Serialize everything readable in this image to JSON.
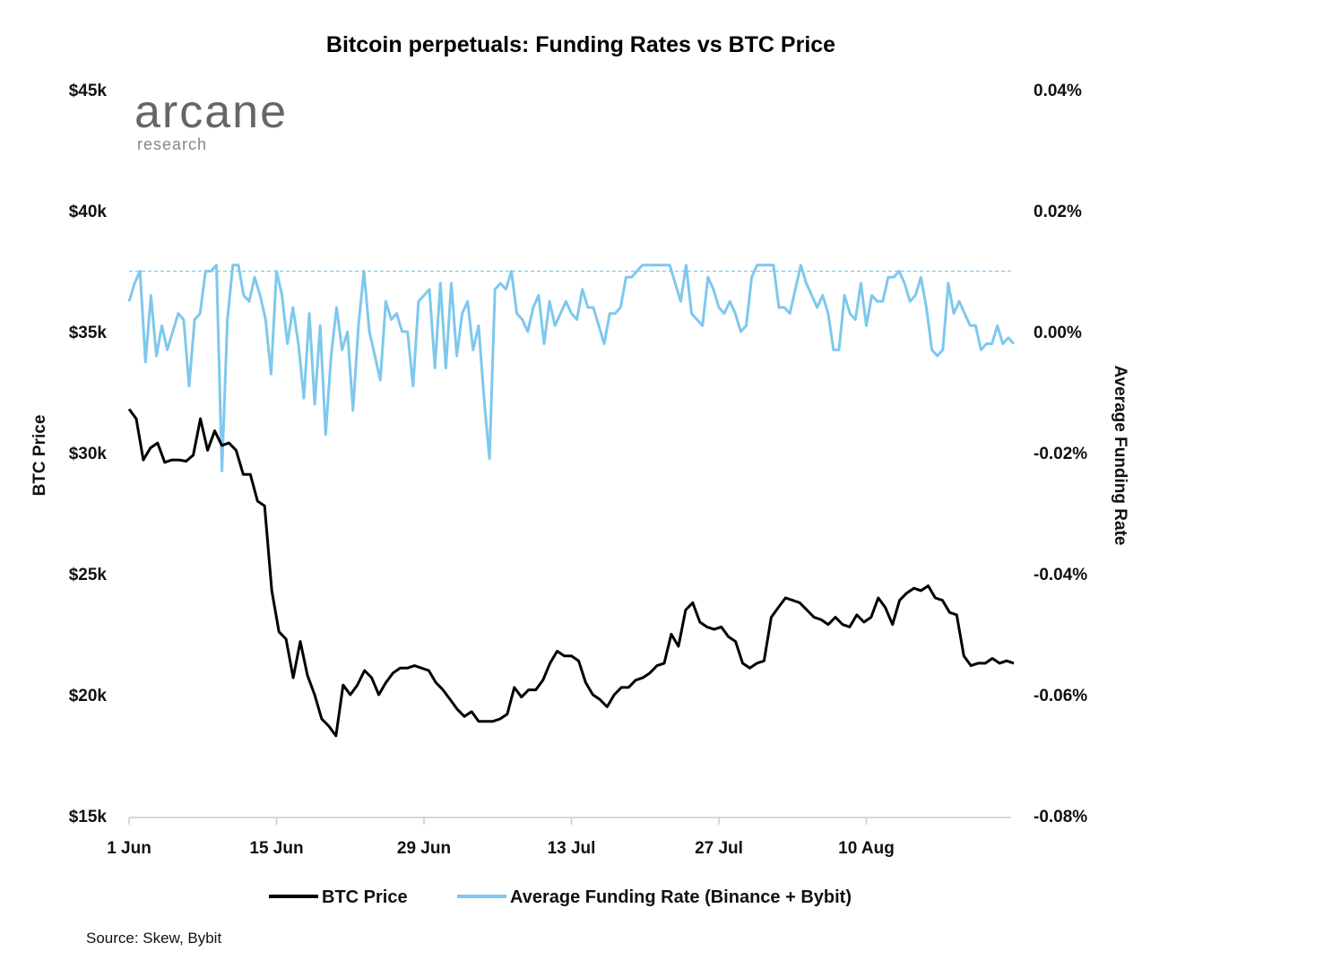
{
  "chart_data": {
    "type": "line",
    "title": "Bitcoin perpetuals: Funding Rates vs BTC Price",
    "logo": {
      "main": "arcane",
      "sub": "research"
    },
    "source": "Source: Skew, Bybit",
    "x_labels": [
      "1 Jun",
      "15 Jun",
      "29 Jun",
      "13 Jul",
      "27 Jul",
      "10 Aug"
    ],
    "x_label_day_index": [
      0,
      14,
      28,
      42,
      56,
      70
    ],
    "x_range_days": [
      0,
      84
    ],
    "y_left": {
      "label": "BTC Price",
      "range": [
        15000,
        45000
      ],
      "ticks": [
        15000,
        20000,
        25000,
        30000,
        35000,
        40000,
        45000
      ],
      "tick_labels": [
        "$15k",
        "$20k",
        "$25k",
        "$30k",
        "$35k",
        "$40k",
        "$45k"
      ]
    },
    "y_right": {
      "label": "Average Funding Rate",
      "range": [
        -0.08,
        0.04
      ],
      "ticks": [
        -0.08,
        -0.06,
        -0.04,
        -0.02,
        0.0,
        0.02,
        0.04
      ],
      "tick_labels": [
        "-0.08%",
        "-0.06%",
        "-0.04%",
        "-0.02%",
        "0.00%",
        "0.02%",
        "0.04%"
      ],
      "reference_line": 0.01
    },
    "grid": false,
    "legend_position": "bottom",
    "series": [
      {
        "name": "BTC Price",
        "axis": "left",
        "color": "#000000",
        "values": [
          31800,
          31400,
          29700,
          30200,
          30400,
          29600,
          29700,
          29700,
          29650,
          29900,
          31400,
          30100,
          30900,
          30300,
          30400,
          30100,
          29100,
          29100,
          28000,
          27800,
          24300,
          22600,
          22300,
          20700,
          22200,
          20800,
          20000,
          19000,
          18700,
          18300,
          20400,
          20000,
          20400,
          21000,
          20700,
          20000,
          20500,
          20900,
          21100,
          21100,
          21200,
          21100,
          21000,
          20500,
          20200,
          19800,
          19400,
          19100,
          19300,
          18900,
          18900,
          18900,
          19000,
          19200,
          20300,
          19900,
          20200,
          20200,
          20600,
          21300,
          21800,
          21600,
          21600,
          21400,
          20500,
          20000,
          19800,
          19500,
          20000,
          20300,
          20300,
          20600,
          20700,
          20900,
          21200,
          21300,
          22500,
          22000,
          23500,
          23800,
          23000,
          22800,
          22700,
          22800,
          22400,
          22200,
          21300,
          21100,
          21300,
          21400,
          23200,
          23600,
          24000,
          23900,
          23800,
          23500,
          23200,
          23100,
          22900,
          23200,
          22900,
          22800,
          23300,
          23000,
          23200,
          24000,
          23600,
          22900,
          23900,
          24200,
          24400,
          24300,
          24500,
          24000,
          23900,
          23400,
          23300,
          21600,
          21200,
          21300,
          21300,
          21500,
          21300,
          21400,
          21300
        ],
        "values_note_days": "one value every ~0.67 day"
      },
      {
        "name": "Average Funding Rate (Binance + Bybit)",
        "axis": "right",
        "color": "#7ec8ed",
        "values": [
          0.005,
          0.008,
          0.01,
          -0.005,
          0.006,
          -0.004,
          0.001,
          -0.003,
          0.0,
          0.003,
          0.002,
          -0.009,
          0.002,
          0.003,
          0.01,
          0.01,
          0.011,
          -0.023,
          0.002,
          0.011,
          0.011,
          0.006,
          0.005,
          0.009,
          0.006,
          0.002,
          -0.007,
          0.01,
          0.006,
          -0.002,
          0.004,
          -0.002,
          -0.011,
          0.003,
          -0.012,
          0.001,
          -0.017,
          -0.004,
          0.004,
          -0.003,
          0.0,
          -0.013,
          0.001,
          0.01,
          0.0,
          -0.004,
          -0.008,
          0.005,
          0.002,
          0.003,
          0.0,
          0.0,
          -0.009,
          0.005,
          0.006,
          0.007,
          -0.006,
          0.008,
          -0.006,
          0.008,
          -0.004,
          0.003,
          0.005,
          -0.003,
          0.001,
          -0.011,
          -0.021,
          0.007,
          0.008,
          0.007,
          0.01,
          0.003,
          0.002,
          0.0,
          0.004,
          0.006,
          -0.002,
          0.005,
          0.001,
          0.003,
          0.005,
          0.003,
          0.002,
          0.007,
          0.004,
          0.004,
          0.001,
          -0.002,
          0.003,
          0.003,
          0.004,
          0.009,
          0.009,
          0.01,
          0.011,
          0.011,
          0.011,
          0.011,
          0.011,
          0.011,
          0.008,
          0.005,
          0.011,
          0.003,
          0.002,
          0.001,
          0.009,
          0.007,
          0.004,
          0.003,
          0.005,
          0.003,
          0.0,
          0.001,
          0.009,
          0.011,
          0.011,
          0.011,
          0.011,
          0.004,
          0.004,
          0.003,
          0.007,
          0.011,
          0.008,
          0.006,
          0.004,
          0.006,
          0.003,
          -0.003,
          -0.003,
          0.006,
          0.003,
          0.002,
          0.008,
          0.001,
          0.006,
          0.005,
          0.005,
          0.009,
          0.009,
          0.01,
          0.008,
          0.005,
          0.006,
          0.009,
          0.004,
          -0.003,
          -0.004,
          -0.003,
          0.008,
          0.003,
          0.005,
          0.003,
          0.001,
          0.001,
          -0.003,
          -0.002,
          -0.002,
          0.001,
          -0.002,
          -0.001,
          -0.002
        ]
      }
    ]
  }
}
